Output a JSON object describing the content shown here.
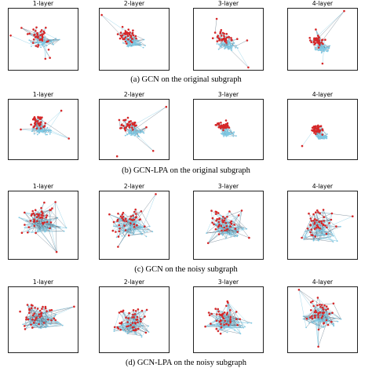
{
  "figure": {
    "rows": [
      {
        "caption": "(a) GCN on the original subgraph",
        "panels": [
          {
            "title": "1-layer"
          },
          {
            "title": "2-layer"
          },
          {
            "title": "3-layer"
          },
          {
            "title": "4-layer"
          }
        ]
      },
      {
        "caption": "(b) GCN-LPA on the original subgraph",
        "panels": [
          {
            "title": "1-layer"
          },
          {
            "title": "2-layer"
          },
          {
            "title": "3-layer"
          },
          {
            "title": "4-layer"
          }
        ]
      },
      {
        "caption": "(c) GCN on the noisy subgraph",
        "panels": [
          {
            "title": "1-layer"
          },
          {
            "title": "2-layer"
          },
          {
            "title": "3-layer"
          },
          {
            "title": "4-layer"
          }
        ]
      },
      {
        "caption": "(d) GCN-LPA on the noisy subgraph",
        "panels": [
          {
            "title": "1-layer"
          },
          {
            "title": "2-layer"
          },
          {
            "title": "3-layer"
          },
          {
            "title": "4-layer"
          }
        ]
      }
    ],
    "colors": {
      "red_node": "#d62728",
      "blue_node": "#7ec8e3",
      "edge": "#5a6f80",
      "frame": "#222222"
    }
  }
}
